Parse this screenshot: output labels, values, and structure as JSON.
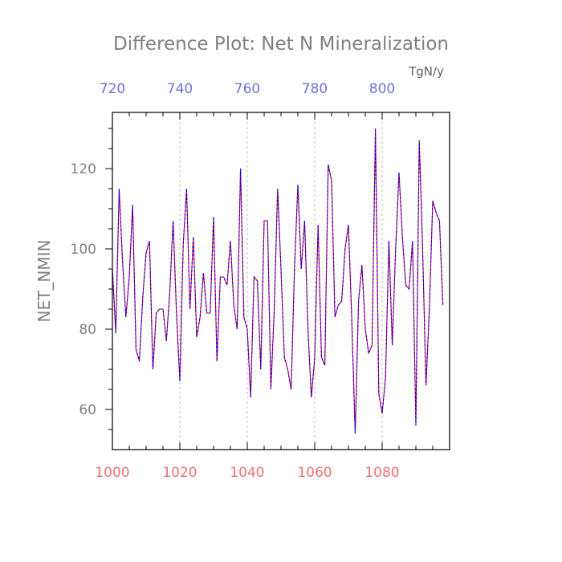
{
  "chart_data": {
    "type": "line",
    "title": "Difference Plot: Net N Mineralization",
    "ylabel": "NET_NMIN",
    "top_axis_unit": "TgN/y",
    "xlim": [
      1000,
      1100
    ],
    "ylim": [
      50,
      134
    ],
    "x_ticks_bottom": [
      "1000",
      "1020",
      "1040",
      "1060",
      "1080"
    ],
    "x_ticks_top": [
      "720",
      "740",
      "760",
      "780",
      "800"
    ],
    "y_ticks": [
      "60",
      "80",
      "100",
      "120"
    ],
    "grid_x": [
      1020,
      1040,
      1060,
      1080
    ],
    "colors": {
      "series_a": "#ff0000",
      "series_b": "#0000ff",
      "bottom_axis": "#f07070",
      "top_axis": "#7070e0"
    },
    "x_start": 1000,
    "x_step": 1,
    "values": [
      95,
      79,
      115,
      97,
      83,
      93,
      111,
      75,
      72,
      88,
      99,
      102,
      70,
      84,
      85,
      85,
      77,
      89,
      107,
      84,
      67,
      101,
      115,
      85,
      103,
      78,
      83,
      94,
      84,
      84,
      108,
      72,
      93,
      93,
      91,
      102,
      86,
      80,
      120,
      83,
      80,
      63,
      93,
      92,
      70,
      107,
      107,
      65,
      85,
      115,
      95,
      73,
      70,
      65,
      95,
      116,
      95,
      107,
      80,
      63,
      73,
      106,
      73,
      71,
      121,
      117,
      83,
      86,
      87,
      100,
      106,
      82,
      54,
      87,
      96,
      80,
      74,
      76,
      130,
      64,
      59,
      68,
      102,
      76,
      100,
      119,
      103,
      91,
      90,
      102,
      56,
      127,
      100,
      66,
      85,
      112,
      109,
      107,
      86
    ]
  }
}
